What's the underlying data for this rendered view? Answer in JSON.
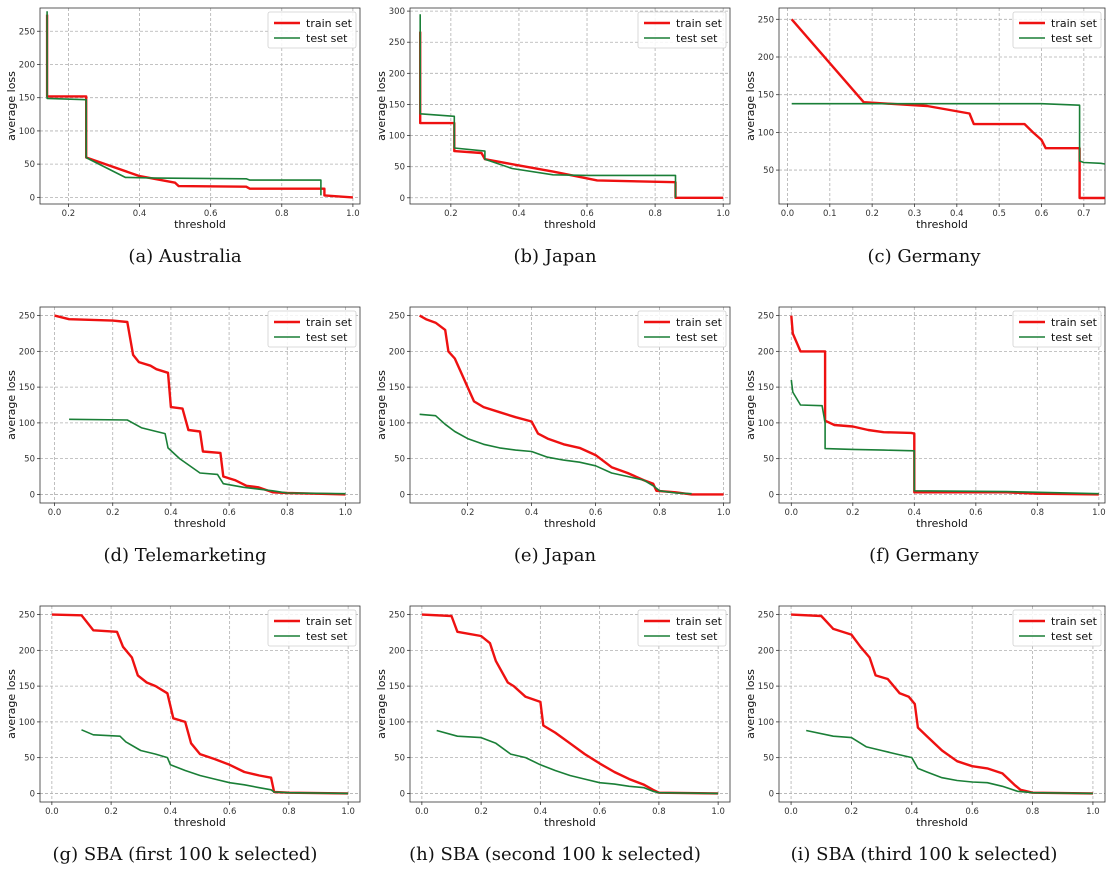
{
  "chart_data": [
    {
      "type": "line",
      "caption": "(a) Australia",
      "xlabel": "threshold",
      "ylabel": "average loss",
      "xlim": [
        0.12,
        1.02
      ],
      "ylim": [
        -10,
        285
      ],
      "xticks": [
        0.2,
        0.4,
        0.6,
        0.8,
        1.0
      ],
      "xticklabels": [
        "0.2",
        "0.4",
        "0.6",
        "0.8",
        "1.0"
      ],
      "yticks": [
        0,
        50,
        100,
        150,
        200,
        250
      ],
      "grid": true,
      "legend": "top-right",
      "series": [
        {
          "name": "train set",
          "color": "#ee1111",
          "x": [
            0.14,
            0.14,
            0.25,
            0.25,
            0.26,
            0.4,
            0.5,
            0.51,
            0.7,
            0.71,
            0.92,
            0.92,
            1.0
          ],
          "y": [
            275,
            152,
            152,
            60,
            58,
            32,
            22,
            17,
            16,
            13,
            13,
            3,
            0
          ]
        },
        {
          "name": "test set",
          "color": "#1a7f37",
          "x": [
            0.14,
            0.14,
            0.25,
            0.25,
            0.26,
            0.36,
            0.45,
            0.7,
            0.71,
            0.91,
            0.91
          ],
          "y": [
            280,
            149,
            147,
            60,
            57,
            30,
            29,
            28,
            26,
            26,
            3
          ]
        }
      ]
    },
    {
      "type": "line",
      "caption": "(b) Japan",
      "xlabel": "threshold",
      "ylabel": "average loss",
      "xlim": [
        0.08,
        1.02
      ],
      "ylim": [
        -10,
        305
      ],
      "xticks": [
        0.2,
        0.4,
        0.6,
        0.8,
        1.0
      ],
      "xticklabels": [
        "0.2",
        "0.4",
        "0.6",
        "0.8",
        "1.0"
      ],
      "yticks": [
        0,
        50,
        100,
        150,
        200,
        250,
        300
      ],
      "grid": true,
      "legend": "top-right",
      "series": [
        {
          "name": "train set",
          "color": "#ee1111",
          "x": [
            0.11,
            0.11,
            0.21,
            0.21,
            0.29,
            0.3,
            0.4,
            0.5,
            0.63,
            0.86,
            0.86,
            1.0
          ],
          "y": [
            267,
            120,
            120,
            75,
            72,
            62,
            52,
            42,
            28,
            25,
            0,
            0
          ]
        },
        {
          "name": "test set",
          "color": "#1a7f37",
          "x": [
            0.11,
            0.11,
            0.21,
            0.21,
            0.3,
            0.3,
            0.38,
            0.5,
            0.6,
            0.86,
            0.86
          ],
          "y": [
            295,
            135,
            131,
            80,
            75,
            62,
            47,
            37,
            36,
            36,
            0
          ]
        }
      ]
    },
    {
      "type": "line",
      "caption": "(c) Germany",
      "xlabel": "threshold",
      "ylabel": "average loss",
      "xlim": [
        -0.02,
        0.75
      ],
      "ylim": [
        5,
        265
      ],
      "xticks": [
        0.0,
        0.1,
        0.2,
        0.3,
        0.4,
        0.5,
        0.6,
        0.7
      ],
      "xticklabels": [
        "0.0",
        "0.1",
        "0.2",
        "0.3",
        "0.4",
        "0.5",
        "0.6",
        "0.7"
      ],
      "yticks": [
        50,
        100,
        150,
        200,
        250
      ],
      "grid": true,
      "legend": "top-right",
      "series": [
        {
          "name": "train set",
          "color": "#ee1111",
          "x": [
            0.01,
            0.18,
            0.33,
            0.43,
            0.44,
            0.56,
            0.58,
            0.6,
            0.61,
            0.69,
            0.69,
            0.75
          ],
          "y": [
            250,
            140,
            135,
            125,
            111,
            111,
            100,
            90,
            79,
            79,
            13,
            13
          ]
        },
        {
          "name": "test set",
          "color": "#1a7f37",
          "x": [
            0.01,
            0.6,
            0.69,
            0.69,
            0.7,
            0.74,
            0.75
          ],
          "y": [
            138,
            138,
            136,
            62,
            60,
            59,
            58
          ]
        }
      ]
    },
    {
      "type": "line",
      "caption": "(d) Telemarketing",
      "xlabel": "threshold",
      "ylabel": "average loss",
      "xlim": [
        -0.05,
        1.05
      ],
      "ylim": [
        -12,
        262
      ],
      "xticks": [
        0.0,
        0.2,
        0.4,
        0.6,
        0.8,
        1.0
      ],
      "xticklabels": [
        "0.0",
        "0.2",
        "0.4",
        "0.6",
        "0.8",
        "1.0"
      ],
      "yticks": [
        0,
        50,
        100,
        150,
        200,
        250
      ],
      "grid": true,
      "legend": "top-right",
      "series": [
        {
          "name": "train set",
          "color": "#ee1111",
          "x": [
            0.0,
            0.05,
            0.2,
            0.25,
            0.27,
            0.29,
            0.33,
            0.35,
            0.39,
            0.4,
            0.44,
            0.46,
            0.5,
            0.51,
            0.57,
            0.58,
            0.62,
            0.66,
            0.7,
            0.75,
            0.8,
            0.9,
            1.0
          ],
          "y": [
            250,
            245,
            243,
            241,
            195,
            185,
            180,
            175,
            170,
            122,
            120,
            90,
            88,
            60,
            58,
            25,
            20,
            12,
            10,
            3,
            2,
            1,
            0
          ]
        },
        {
          "name": "test set",
          "color": "#1a7f37",
          "x": [
            0.05,
            0.25,
            0.3,
            0.35,
            0.38,
            0.39,
            0.43,
            0.5,
            0.56,
            0.58,
            0.65,
            0.75,
            0.8,
            1.0
          ],
          "y": [
            105,
            104,
            93,
            88,
            85,
            65,
            50,
            30,
            28,
            15,
            10,
            5,
            2,
            1
          ]
        }
      ]
    },
    {
      "type": "line",
      "caption": "(e) Japan",
      "xlabel": "threshold",
      "ylabel": "average loss",
      "xlim": [
        0.02,
        1.02
      ],
      "ylim": [
        -12,
        262
      ],
      "xticks": [
        0.2,
        0.4,
        0.6,
        0.8,
        1.0
      ],
      "xticklabels": [
        "0.2",
        "0.4",
        "0.6",
        "0.8",
        "1.0"
      ],
      "yticks": [
        0,
        50,
        100,
        150,
        200,
        250
      ],
      "grid": true,
      "legend": "top-right",
      "series": [
        {
          "name": "train set",
          "color": "#ee1111",
          "x": [
            0.05,
            0.07,
            0.1,
            0.13,
            0.14,
            0.16,
            0.18,
            0.2,
            0.22,
            0.25,
            0.3,
            0.35,
            0.4,
            0.42,
            0.45,
            0.5,
            0.55,
            0.6,
            0.65,
            0.7,
            0.75,
            0.78,
            0.79,
            0.85,
            0.9,
            1.0
          ],
          "y": [
            250,
            245,
            240,
            230,
            200,
            190,
            170,
            150,
            130,
            122,
            115,
            108,
            102,
            85,
            78,
            70,
            65,
            55,
            38,
            30,
            20,
            15,
            5,
            3,
            0,
            0
          ]
        },
        {
          "name": "test set",
          "color": "#1a7f37",
          "x": [
            0.05,
            0.1,
            0.13,
            0.16,
            0.2,
            0.25,
            0.3,
            0.35,
            0.4,
            0.45,
            0.5,
            0.55,
            0.6,
            0.65,
            0.7,
            0.75,
            0.78,
            0.8,
            0.85,
            0.9
          ],
          "y": [
            112,
            110,
            98,
            88,
            78,
            70,
            65,
            62,
            60,
            52,
            48,
            45,
            40,
            30,
            25,
            20,
            12,
            5,
            2,
            1
          ]
        }
      ]
    },
    {
      "type": "line",
      "caption": "(f) Germany",
      "xlabel": "threshold",
      "ylabel": "average loss",
      "xlim": [
        -0.04,
        1.02
      ],
      "ylim": [
        -12,
        262
      ],
      "xticks": [
        0.0,
        0.2,
        0.4,
        0.6,
        0.8,
        1.0
      ],
      "xticklabels": [
        "0.0",
        "0.2",
        "0.4",
        "0.6",
        "0.8",
        "1.0"
      ],
      "yticks": [
        0,
        50,
        100,
        150,
        200,
        250
      ],
      "grid": true,
      "legend": "top-right",
      "series": [
        {
          "name": "train set",
          "color": "#ee1111",
          "x": [
            0.0,
            0.005,
            0.03,
            0.11,
            0.11,
            0.14,
            0.2,
            0.25,
            0.3,
            0.39,
            0.4,
            0.4,
            0.7,
            0.8,
            1.0
          ],
          "y": [
            250,
            225,
            200,
            200,
            103,
            97,
            95,
            90,
            87,
            86,
            85,
            3,
            3,
            1,
            0
          ]
        },
        {
          "name": "test set",
          "color": "#1a7f37",
          "x": [
            0.0,
            0.005,
            0.03,
            0.1,
            0.11,
            0.11,
            0.2,
            0.3,
            0.4,
            0.4,
            0.7,
            1.0
          ],
          "y": [
            160,
            143,
            125,
            124,
            100,
            64,
            63,
            62,
            61,
            5,
            4,
            1
          ]
        }
      ]
    },
    {
      "type": "line",
      "caption": "(g) SBA (first 100 k selected)",
      "xlabel": "threshold",
      "ylabel": "average loss",
      "xlim": [
        -0.04,
        1.04
      ],
      "ylim": [
        -12,
        262
      ],
      "xticks": [
        0.0,
        0.2,
        0.4,
        0.6,
        0.8,
        1.0
      ],
      "xticklabels": [
        "0.0",
        "0.2",
        "0.4",
        "0.6",
        "0.8",
        "1.0"
      ],
      "yticks": [
        0,
        50,
        100,
        150,
        200,
        250
      ],
      "grid": true,
      "legend": "top-right",
      "series": [
        {
          "name": "train set",
          "color": "#ee1111",
          "x": [
            0.0,
            0.1,
            0.14,
            0.22,
            0.24,
            0.27,
            0.29,
            0.32,
            0.35,
            0.39,
            0.41,
            0.45,
            0.47,
            0.5,
            0.55,
            0.6,
            0.65,
            0.7,
            0.74,
            0.75,
            0.8,
            1.0
          ],
          "y": [
            250,
            249,
            228,
            226,
            205,
            190,
            165,
            155,
            150,
            140,
            105,
            100,
            70,
            55,
            48,
            40,
            30,
            25,
            22,
            2,
            1,
            0
          ]
        },
        {
          "name": "test set",
          "color": "#1a7f37",
          "x": [
            0.1,
            0.14,
            0.23,
            0.25,
            0.3,
            0.35,
            0.39,
            0.4,
            0.45,
            0.5,
            0.55,
            0.6,
            0.65,
            0.7,
            0.74,
            0.75,
            0.8,
            1.0
          ],
          "y": [
            89,
            82,
            80,
            72,
            60,
            55,
            50,
            40,
            32,
            25,
            20,
            15,
            12,
            8,
            5,
            2,
            1,
            0
          ]
        }
      ]
    },
    {
      "type": "line",
      "caption": "(h) SBA (second 100 k selected)",
      "xlabel": "threshold",
      "ylabel": "average loss",
      "xlim": [
        -0.04,
        1.04
      ],
      "ylim": [
        -12,
        262
      ],
      "xticks": [
        0.0,
        0.2,
        0.4,
        0.6,
        0.8,
        1.0
      ],
      "xticklabels": [
        "0.0",
        "0.2",
        "0.4",
        "0.6",
        "0.8",
        "1.0"
      ],
      "yticks": [
        0,
        50,
        100,
        150,
        200,
        250
      ],
      "grid": true,
      "legend": "top-right",
      "series": [
        {
          "name": "train set",
          "color": "#ee1111",
          "x": [
            0.0,
            0.1,
            0.12,
            0.2,
            0.23,
            0.25,
            0.29,
            0.31,
            0.35,
            0.4,
            0.41,
            0.45,
            0.5,
            0.55,
            0.6,
            0.65,
            0.7,
            0.75,
            0.78,
            0.8,
            1.0
          ],
          "y": [
            250,
            248,
            226,
            220,
            210,
            185,
            155,
            150,
            135,
            128,
            95,
            85,
            70,
            55,
            42,
            30,
            20,
            12,
            5,
            1,
            0
          ]
        },
        {
          "name": "test set",
          "color": "#1a7f37",
          "x": [
            0.05,
            0.12,
            0.2,
            0.25,
            0.3,
            0.35,
            0.4,
            0.45,
            0.5,
            0.55,
            0.6,
            0.65,
            0.7,
            0.75,
            0.78,
            0.8,
            1.0
          ],
          "y": [
            88,
            80,
            78,
            70,
            55,
            50,
            40,
            32,
            25,
            20,
            15,
            13,
            10,
            8,
            3,
            1,
            0
          ]
        }
      ]
    },
    {
      "type": "line",
      "caption": "(i) SBA (third 100 k selected)",
      "xlabel": "threshold",
      "ylabel": "average loss",
      "xlim": [
        -0.04,
        1.04
      ],
      "ylim": [
        -12,
        262
      ],
      "xticks": [
        0.0,
        0.2,
        0.4,
        0.6,
        0.8,
        1.0
      ],
      "xticklabels": [
        "0.0",
        "0.2",
        "0.4",
        "0.6",
        "0.8",
        "1.0"
      ],
      "yticks": [
        0,
        50,
        100,
        150,
        200,
        250
      ],
      "grid": true,
      "legend": "top-right",
      "series": [
        {
          "name": "train set",
          "color": "#ee1111",
          "x": [
            0.0,
            0.1,
            0.14,
            0.2,
            0.23,
            0.26,
            0.28,
            0.32,
            0.36,
            0.39,
            0.41,
            0.42,
            0.45,
            0.5,
            0.55,
            0.6,
            0.65,
            0.7,
            0.74,
            0.76,
            0.8,
            1.0
          ],
          "y": [
            250,
            248,
            230,
            222,
            205,
            190,
            165,
            160,
            140,
            135,
            125,
            92,
            80,
            60,
            45,
            38,
            35,
            28,
            12,
            5,
            1,
            0
          ]
        },
        {
          "name": "test set",
          "color": "#1a7f37",
          "x": [
            0.05,
            0.14,
            0.2,
            0.25,
            0.3,
            0.35,
            0.4,
            0.42,
            0.45,
            0.5,
            0.55,
            0.6,
            0.65,
            0.7,
            0.75,
            0.8,
            1.0
          ],
          "y": [
            88,
            80,
            78,
            65,
            60,
            55,
            50,
            35,
            30,
            22,
            18,
            16,
            15,
            10,
            3,
            1,
            0
          ]
        }
      ]
    }
  ]
}
